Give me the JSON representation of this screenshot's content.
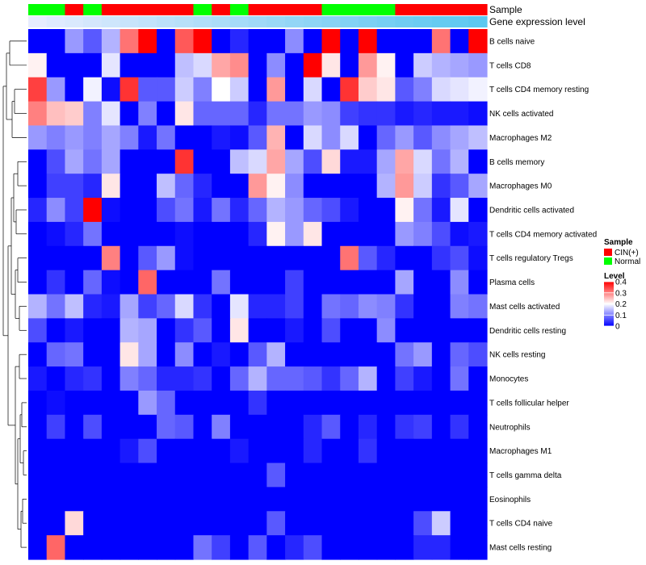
{
  "chart_data": {
    "type": "heatmap",
    "annotation_labels": [
      "Sample",
      "Gene expression level"
    ],
    "legends": {
      "sample": {
        "title": "Sample",
        "entries": [
          {
            "label": "CIN(+)",
            "color": "#ff0000"
          },
          {
            "label": "Normal",
            "color": "#00ff00"
          }
        ]
      },
      "level": {
        "title": "Level",
        "ticks": [
          "0.4",
          "0.3",
          "0.2",
          "0.1",
          "0"
        ],
        "range": [
          0,
          0.4
        ]
      }
    },
    "colors": {
      "low": "#0000ff",
      "mid": "#ffffff",
      "high": "#ff0000",
      "cin": "#ff0000",
      "normal": "#00ff00",
      "expr_low": "#eeeeff",
      "expr_high": "#5cc8f0",
      "dendrogram": "#000000"
    },
    "sample_groups": [
      "Normal",
      "Normal",
      "CIN(+)",
      "Normal",
      "CIN(+)",
      "CIN(+)",
      "CIN(+)",
      "CIN(+)",
      "CIN(+)",
      "Normal",
      "CIN(+)",
      "Normal",
      "CIN(+)",
      "CIN(+)",
      "CIN(+)",
      "CIN(+)",
      "Normal",
      "Normal",
      "Normal",
      "Normal",
      "CIN(+)",
      "CIN(+)",
      "CIN(+)",
      "CIN(+)",
      "CIN(+)"
    ],
    "gene_expression_level": [
      0.05,
      0.1,
      0.14,
      0.18,
      0.22,
      0.26,
      0.3,
      0.34,
      0.38,
      0.42,
      0.46,
      0.5,
      0.54,
      0.58,
      0.62,
      0.66,
      0.7,
      0.74,
      0.78,
      0.82,
      0.86,
      0.9,
      0.93,
      0.96,
      1.0
    ],
    "rows": [
      "B cells naive",
      "T cells CD8",
      "T cells CD4 memory resting",
      "NK cells activated",
      "Macrophages M2",
      "B cells memory",
      "Macrophages M0",
      "Dendritic cells activated",
      "T cells CD4 memory activated",
      "T cells regulatory  Tregs",
      "Plasma cells",
      "Mast cells activated",
      "Dendritic cells resting",
      "NK cells resting",
      "Monocytes",
      "T cells follicular helper",
      "Neutrophils",
      "Macrophages M1",
      "T cells gamma delta",
      "Eosinophils",
      "T cells CD4 naive",
      "Mast cells resting"
    ],
    "values": [
      [
        0,
        0,
        0.12,
        0.07,
        0.14,
        0.31,
        0.4,
        0,
        0.33,
        0.4,
        0,
        0.03,
        0,
        0,
        0.11,
        0,
        0.4,
        0,
        0.4,
        0,
        0,
        0,
        0.31,
        0,
        0.4
      ],
      [
        0.21,
        0,
        0,
        0,
        0.18,
        0,
        0,
        0,
        0.15,
        0.17,
        0.27,
        0.29,
        0,
        0.11,
        0,
        0.4,
        0.22,
        0,
        0.28,
        0.21,
        0,
        0.16,
        0.14,
        0.13,
        0.12
      ],
      [
        0.35,
        0.12,
        0,
        0.19,
        0.01,
        0.36,
        0.07,
        0.07,
        0.16,
        0.1,
        0.2,
        0.16,
        0,
        0.28,
        0,
        0.17,
        0,
        0.36,
        0.24,
        0.22,
        0.07,
        0.1,
        0.17,
        0.18,
        0.19
      ],
      [
        0.3,
        0.25,
        0.24,
        0.1,
        0.18,
        0,
        0.1,
        0,
        0.22,
        0.08,
        0.08,
        0.08,
        0.03,
        0.09,
        0.09,
        0.12,
        0.11,
        0.05,
        0.04,
        0.04,
        0.02,
        0.03,
        0.02,
        0.02,
        0.01
      ],
      [
        0.12,
        0.1,
        0.12,
        0.1,
        0.13,
        0.1,
        0.02,
        0.09,
        0,
        0,
        0.02,
        0.01,
        0.07,
        0.26,
        0,
        0.17,
        0.11,
        0.17,
        0,
        0.08,
        0.12,
        0.07,
        0.11,
        0.13,
        0.15
      ],
      [
        0,
        0.06,
        0.13,
        0.09,
        0.13,
        0,
        0,
        0,
        0.36,
        0,
        0,
        0.15,
        0.17,
        0.27,
        0.13,
        0.06,
        0.23,
        0.02,
        0.02,
        0.13,
        0.27,
        0.17,
        0.09,
        0.14,
        0
      ],
      [
        0,
        0.05,
        0.05,
        0.03,
        0.22,
        0,
        0,
        0.15,
        0.08,
        0.03,
        0,
        0,
        0.28,
        0.21,
        0.11,
        0,
        0,
        0,
        0,
        0.14,
        0.28,
        0.16,
        0.04,
        0.07,
        0.13
      ],
      [
        0.03,
        0.11,
        0.05,
        0.4,
        0.01,
        0,
        0,
        0.06,
        0.09,
        0.02,
        0.09,
        0.03,
        0.08,
        0.14,
        0.12,
        0.08,
        0.06,
        0.02,
        0,
        0,
        0.21,
        0.09,
        0.02,
        0.18,
        0
      ],
      [
        0,
        0.01,
        0.03,
        0.09,
        0,
        0,
        0,
        0,
        0.01,
        0,
        0,
        0,
        0.03,
        0.21,
        0.12,
        0.22,
        0,
        0,
        0,
        0,
        0.12,
        0.1,
        0.06,
        0.01,
        0.02
      ],
      [
        0,
        0,
        0,
        0,
        0.3,
        0,
        0.07,
        0.12,
        0.01,
        0,
        0,
        0,
        0,
        0,
        0,
        0,
        0,
        0.31,
        0.07,
        0.03,
        0,
        0,
        0.04,
        0.06,
        0.01
      ],
      [
        0,
        0.04,
        0,
        0.08,
        0.01,
        0,
        0.32,
        0,
        0,
        0,
        0.09,
        0,
        0,
        0,
        0.05,
        0,
        0,
        0,
        0,
        0,
        0.13,
        0,
        0,
        0.11,
        0
      ],
      [
        0.14,
        0.09,
        0.15,
        0.03,
        0.02,
        0.13,
        0.05,
        0.08,
        0.17,
        0.04,
        0,
        0.18,
        0.03,
        0.03,
        0.05,
        0,
        0.09,
        0.08,
        0.11,
        0.1,
        0.04,
        0,
        0,
        0.1,
        0.09
      ],
      [
        0.06,
        0,
        0.02,
        0,
        0,
        0.14,
        0.13,
        0,
        0.04,
        0.07,
        0,
        0.22,
        0,
        0,
        0.02,
        0,
        0.06,
        0,
        0,
        0.11,
        0,
        0,
        0,
        0,
        0
      ],
      [
        0,
        0.08,
        0.09,
        0,
        0,
        0.22,
        0.13,
        0,
        0.11,
        0,
        0.02,
        0,
        0.07,
        0.14,
        0,
        0,
        0,
        0,
        0,
        0,
        0.09,
        0.12,
        0,
        0.08,
        0.06
      ],
      [
        0.02,
        0,
        0.03,
        0.04,
        0,
        0.1,
        0.08,
        0.03,
        0.03,
        0.04,
        0,
        0.08,
        0.14,
        0.08,
        0.08,
        0.07,
        0.04,
        0.08,
        0.14,
        0,
        0.05,
        0.02,
        0,
        0.09,
        0
      ],
      [
        0,
        0.01,
        0,
        0,
        0,
        0,
        0.12,
        0.08,
        0,
        0,
        0,
        0,
        0.04,
        0,
        0,
        0,
        0,
        0,
        0,
        0,
        0,
        0,
        0,
        0,
        0
      ],
      [
        0,
        0.05,
        0,
        0.06,
        0,
        0,
        0,
        0.08,
        0.07,
        0,
        0.1,
        0,
        0,
        0,
        0,
        0.03,
        0.07,
        0,
        0.03,
        0,
        0.04,
        0.05,
        0,
        0.04,
        0
      ],
      [
        0,
        0,
        0,
        0,
        0,
        0.02,
        0.06,
        0,
        0,
        0,
        0,
        0.02,
        0,
        0,
        0,
        0.03,
        0,
        0,
        0.04,
        0,
        0,
        0,
        0,
        0,
        0
      ],
      [
        0,
        0,
        0,
        0,
        0,
        0,
        0,
        0,
        0,
        0,
        0,
        0,
        0,
        0.07,
        0,
        0,
        0,
        0,
        0,
        0,
        0,
        0,
        0,
        0,
        0
      ],
      [
        0,
        0,
        0,
        0,
        0,
        0,
        0,
        0,
        0,
        0,
        0,
        0,
        0,
        0,
        0,
        0,
        0,
        0,
        0,
        0,
        0,
        0,
        0,
        0,
        0
      ],
      [
        0,
        0,
        0.23,
        0,
        0,
        0,
        0,
        0,
        0,
        0,
        0,
        0,
        0,
        0.07,
        0,
        0,
        0,
        0,
        0,
        0,
        0,
        0.06,
        0.16,
        0,
        0
      ],
      [
        0,
        0.32,
        0,
        0,
        0,
        0,
        0,
        0,
        0,
        0.09,
        0.05,
        0,
        0.07,
        0,
        0.03,
        0.06,
        0,
        0,
        0,
        0,
        0,
        0.03,
        0.03,
        0,
        0
      ]
    ]
  }
}
